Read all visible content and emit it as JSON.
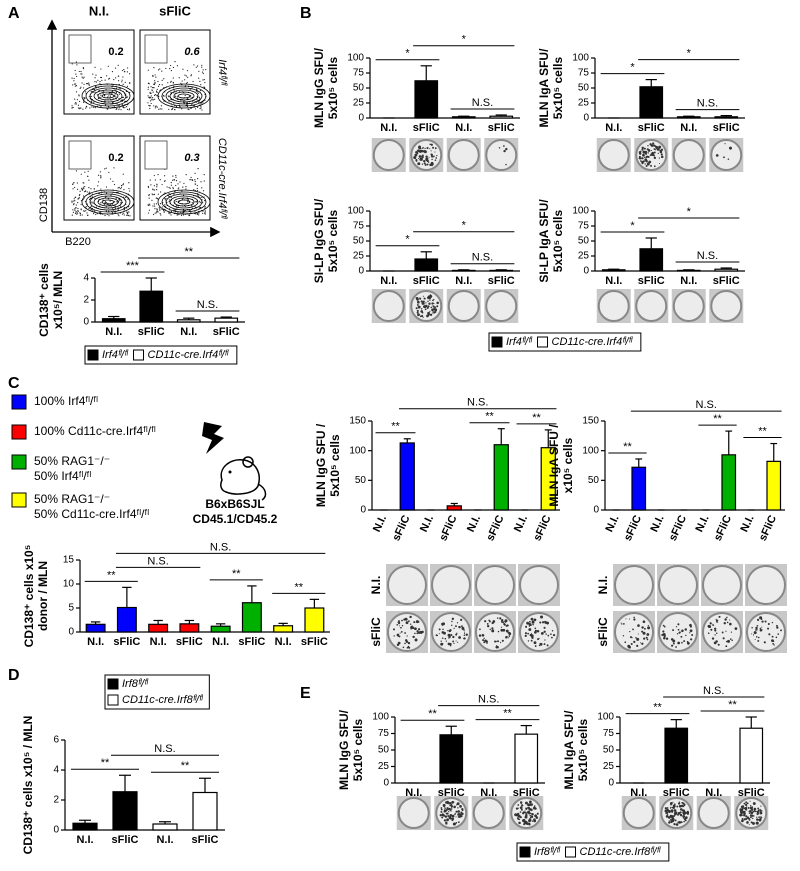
{
  "panel_labels": [
    "A",
    "B",
    "C",
    "D",
    "E"
  ],
  "flow": {
    "columns": [
      "N.I.",
      "sFliC"
    ],
    "rows": [
      "Irf4ᶠˡ/ᶠˡ",
      "CD11c-cre.Irf4ᶠˡ/ᶠˡ"
    ],
    "gate_values": [
      [
        0.2,
        0.6
      ],
      [
        0.2,
        0.3
      ]
    ],
    "y_label": "CD138",
    "x_label": "B220"
  },
  "legends": {
    "A": [
      {
        "label": "Irf4ᶠˡ/ᶠˡ",
        "color": "#000000"
      },
      {
        "label": "CD11c-cre.Irf4ᶠˡ/ᶠˡ",
        "color": "#ffffff"
      }
    ],
    "B": [
      {
        "label": "Irf4ᶠˡ/ᶠˡ",
        "color": "#000000"
      },
      {
        "label": "CD11c-cre.Irf4ᶠˡ/ᶠˡ",
        "color": "#ffffff"
      }
    ],
    "D": [
      {
        "label": "Irf8ᶠˡ/ᶠˡ",
        "color": "#000000"
      },
      {
        "label": "CD11c-cre.Irf8ᶠˡ/ᶠˡ",
        "color": "#ffffff"
      }
    ],
    "E": [
      {
        "label": "Irf8ᶠˡ/ᶠˡ",
        "color": "#000000"
      },
      {
        "label": "CD11c-cre.Irf8ᶠˡ/ᶠˡ",
        "color": "#ffffff"
      }
    ]
  },
  "chimera_groups": [
    {
      "color": "#0000ff",
      "lines": [
        {
          "text": "100% Irf4ᶠˡ/ᶠˡ",
          "color": "#0000ff"
        }
      ]
    },
    {
      "color": "#ff0000",
      "lines": [
        {
          "text": "100% Cd11c-cre.Irf4ᶠˡ/ᶠˡ",
          "color": "#ff0000"
        }
      ]
    },
    {
      "color": "#00b000",
      "lines": [
        {
          "text": "50% RAG1⁻/⁻",
          "color": "#00b000"
        },
        {
          "text": "50% Irf4ᶠˡ/ᶠˡ",
          "color": "#0000ff"
        }
      ]
    },
    {
      "color": "#ffff00",
      "lines": [
        {
          "text": "50% RAG1⁻/⁻",
          "color": "#e6c800"
        },
        {
          "text": "50% Cd11c-cre.Irf4ᶠˡ/ᶠˡ",
          "color": "#ff0000"
        }
      ]
    }
  ],
  "recipient": [
    "B6xB6SJL",
    "CD45.1/CD45.2"
  ],
  "well_rows": [
    "N.I.",
    "sFliC"
  ],
  "chart_data": [
    {
      "type": "bar",
      "ylabel": [
        "CD138⁺ cells",
        "x10⁵/ MLN"
      ],
      "categories": [
        "N.I.",
        "sFliC",
        "N.I.",
        "sFliC"
      ],
      "values": [
        0.3,
        2.8,
        0.2,
        0.35
      ],
      "errors": [
        0.2,
        1.2,
        0.15,
        0.1
      ],
      "colors": [
        "#000000",
        "#000000",
        "#ffffff",
        "#ffffff"
      ],
      "ylim": [
        0,
        4
      ],
      "yticks": [
        0,
        2,
        4
      ],
      "annotations": [
        {
          "text": "***",
          "between": [
            0,
            1
          ]
        },
        {
          "text": "**",
          "between": [
            1,
            3
          ]
        },
        {
          "text": "N.S.",
          "between": [
            2,
            3
          ]
        }
      ]
    },
    {
      "type": "bar",
      "ylabel": [
        "MLN IgG SFU/",
        "5x10⁵ cells"
      ],
      "categories": [
        "N.I.",
        "sFliC",
        "N.I.",
        "sFliC"
      ],
      "values": [
        0,
        62,
        2,
        3
      ],
      "errors": [
        0,
        25,
        1,
        2
      ],
      "colors": [
        "#000000",
        "#000000",
        "#ffffff",
        "#ffffff"
      ],
      "ylim": [
        0,
        100
      ],
      "yticks": [
        0,
        25,
        50,
        75,
        100
      ],
      "annotations": [
        {
          "text": "*",
          "between": [
            0,
            1
          ]
        },
        {
          "text": "*",
          "between": [
            1,
            3
          ]
        },
        {
          "text": "N.S.",
          "between": [
            2,
            3
          ]
        }
      ]
    },
    {
      "type": "bar",
      "ylabel": [
        "MLN IgA SFU/",
        "5x10⁵ cells"
      ],
      "categories": [
        "N.I.",
        "sFliC",
        "N.I.",
        "sFliC"
      ],
      "values": [
        0,
        52,
        2,
        2
      ],
      "errors": [
        0,
        12,
        1,
        2
      ],
      "colors": [
        "#000000",
        "#000000",
        "#ffffff",
        "#ffffff"
      ],
      "ylim": [
        0,
        100
      ],
      "yticks": [
        0,
        25,
        50,
        75,
        100
      ],
      "annotations": [
        {
          "text": "*",
          "between": [
            0,
            1
          ]
        },
        {
          "text": "*",
          "between": [
            1,
            3
          ]
        },
        {
          "text": "N.S.",
          "between": [
            2,
            3
          ]
        }
      ]
    },
    {
      "type": "bar",
      "ylabel": [
        "SI-LP IgG SFU/",
        "5x10⁵ cells"
      ],
      "categories": [
        "N.I.",
        "sFliC",
        "N.I.",
        "sFliC"
      ],
      "values": [
        0,
        20,
        1,
        1
      ],
      "errors": [
        0,
        12,
        1,
        1
      ],
      "colors": [
        "#000000",
        "#000000",
        "#ffffff",
        "#ffffff"
      ],
      "ylim": [
        0,
        100
      ],
      "yticks": [
        0,
        25,
        50,
        75,
        100
      ],
      "annotations": [
        {
          "text": "*",
          "between": [
            0,
            1
          ]
        },
        {
          "text": "*",
          "between": [
            1,
            3
          ]
        },
        {
          "text": "N.S.",
          "between": [
            2,
            3
          ]
        }
      ]
    },
    {
      "type": "bar",
      "ylabel": [
        "SI-LP IgA SFU/",
        "5x10⁵ cells"
      ],
      "categories": [
        "N.I.",
        "sFliC",
        "N.I.",
        "sFliC"
      ],
      "values": [
        2,
        37,
        1,
        3
      ],
      "errors": [
        1,
        18,
        1,
        2
      ],
      "colors": [
        "#000000",
        "#000000",
        "#ffffff",
        "#ffffff"
      ],
      "ylim": [
        0,
        100
      ],
      "yticks": [
        0,
        25,
        50,
        75,
        100
      ],
      "annotations": [
        {
          "text": "*",
          "between": [
            0,
            1
          ]
        },
        {
          "text": "*",
          "between": [
            1,
            3
          ]
        },
        {
          "text": "N.S.",
          "between": [
            2,
            3
          ]
        }
      ]
    },
    {
      "type": "bar",
      "ylabel": [
        "CD138⁺ cells x10⁵",
        "donor / MLN"
      ],
      "categories": [
        "N.I.",
        "sFliC",
        "N.I.",
        "sFliC",
        "N.I.",
        "sFliC",
        "N.I.",
        "sFliC"
      ],
      "values": [
        1.6,
        5.1,
        1.6,
        1.7,
        1.2,
        6.1,
        1.3,
        5.0
      ],
      "errors": [
        0.5,
        4.2,
        0.8,
        0.7,
        0.5,
        3.5,
        0.5,
        1.8
      ],
      "colors": [
        "#0000ff",
        "#0000ff",
        "#ff0000",
        "#ff0000",
        "#00b000",
        "#00b000",
        "#ffff00",
        "#ffff00"
      ],
      "ylim": [
        0,
        15
      ],
      "yticks": [
        0,
        5,
        10,
        15
      ],
      "annotations": [
        {
          "text": "**",
          "between": [
            0,
            1
          ]
        },
        {
          "text": "N.S.",
          "between": [
            1,
            3
          ]
        },
        {
          "text": "**",
          "between": [
            4,
            5
          ]
        },
        {
          "text": "**",
          "between": [
            6,
            7
          ]
        },
        {
          "text": "N.S.",
          "between": [
            1,
            7
          ]
        }
      ]
    },
    {
      "type": "bar",
      "ylabel": [
        "MLN IgG SFU /",
        "5x10⁵ cells"
      ],
      "categories": [
        "N.I.",
        "sFliC",
        "N.I.",
        "sFliC",
        "N.I.",
        "sFliC",
        "N.I.",
        "sFliC"
      ],
      "values": [
        0,
        113,
        0,
        7,
        0,
        110,
        0,
        105
      ],
      "errors": [
        0,
        7,
        0,
        4,
        0,
        27,
        0,
        30
      ],
      "colors": [
        "#0000ff",
        "#0000ff",
        "#ff0000",
        "#ff0000",
        "#00b000",
        "#00b000",
        "#ffff00",
        "#ffff00"
      ],
      "ylim": [
        0,
        150
      ],
      "yticks": [
        0,
        50,
        100,
        150
      ],
      "annotations": [
        {
          "text": "**",
          "between": [
            0,
            1
          ]
        },
        {
          "text": "**",
          "between": [
            4,
            5
          ]
        },
        {
          "text": "**",
          "between": [
            6,
            7
          ]
        },
        {
          "text": "N.S.",
          "between": [
            1,
            7
          ]
        }
      ]
    },
    {
      "type": "bar",
      "ylabel": [
        "MLN IgA SFU /",
        "x10⁵ cells"
      ],
      "categories": [
        "N.I.",
        "sFliC",
        "N.I.",
        "sFliC",
        "N.I.",
        "sFliC",
        "N.I.",
        "sFliC"
      ],
      "values": [
        0,
        72,
        0,
        0,
        0,
        93,
        0,
        82
      ],
      "errors": [
        0,
        14,
        0,
        0,
        0,
        40,
        0,
        30
      ],
      "colors": [
        "#0000ff",
        "#0000ff",
        "#ff0000",
        "#ff0000",
        "#00b000",
        "#00b000",
        "#ffff00",
        "#ffff00"
      ],
      "ylim": [
        0,
        150
      ],
      "yticks": [
        0,
        50,
        100,
        150
      ],
      "annotations": [
        {
          "text": "**",
          "between": [
            0,
            1
          ]
        },
        {
          "text": "**",
          "between": [
            4,
            5
          ]
        },
        {
          "text": "**",
          "between": [
            6,
            7
          ]
        },
        {
          "text": "N.S.",
          "between": [
            1,
            7
          ]
        }
      ]
    },
    {
      "type": "bar",
      "ylabel": [
        "CD138⁺ cells x10⁵ / MLN"
      ],
      "categories": [
        "N.I.",
        "sFliC",
        "N.I.",
        "sFliC"
      ],
      "values": [
        0.45,
        2.55,
        0.4,
        2.5
      ],
      "errors": [
        0.2,
        1.1,
        0.15,
        0.95
      ],
      "colors": [
        "#000000",
        "#000000",
        "#ffffff",
        "#ffffff"
      ],
      "ylim": [
        0,
        6
      ],
      "yticks": [
        0,
        2,
        4,
        6
      ],
      "annotations": [
        {
          "text": "**",
          "between": [
            0,
            1
          ]
        },
        {
          "text": "**",
          "between": [
            2,
            3
          ]
        },
        {
          "text": "N.S.",
          "between": [
            1,
            3
          ]
        }
      ]
    },
    {
      "type": "bar",
      "ylabel": [
        "MLN IgG SFU/",
        "5x10⁵ cells"
      ],
      "categories": [
        "N.I.",
        "sFliC",
        "N.I.",
        "sFliC"
      ],
      "values": [
        0,
        73,
        0,
        74
      ],
      "errors": [
        0,
        13,
        0,
        13
      ],
      "colors": [
        "#000000",
        "#000000",
        "#ffffff",
        "#ffffff"
      ],
      "ylim": [
        0,
        100
      ],
      "yticks": [
        0,
        25,
        50,
        75,
        100
      ],
      "annotations": [
        {
          "text": "**",
          "between": [
            0,
            1
          ]
        },
        {
          "text": "**",
          "between": [
            2,
            3
          ]
        },
        {
          "text": "N.S.",
          "between": [
            1,
            3
          ]
        }
      ]
    },
    {
      "type": "bar",
      "ylabel": [
        "MLN IgA SFU/",
        "5x10⁵ cells"
      ],
      "categories": [
        "N.I.",
        "sFliC",
        "N.I.",
        "sFliC"
      ],
      "values": [
        0,
        83,
        0,
        83
      ],
      "errors": [
        0,
        13,
        0,
        17
      ],
      "colors": [
        "#000000",
        "#000000",
        "#ffffff",
        "#ffffff"
      ],
      "ylim": [
        0,
        100
      ],
      "yticks": [
        0,
        25,
        50,
        75,
        100
      ],
      "annotations": [
        {
          "text": "**",
          "between": [
            0,
            1
          ]
        },
        {
          "text": "**",
          "between": [
            2,
            3
          ]
        },
        {
          "text": "N.S.",
          "between": [
            1,
            3
          ]
        }
      ]
    }
  ]
}
